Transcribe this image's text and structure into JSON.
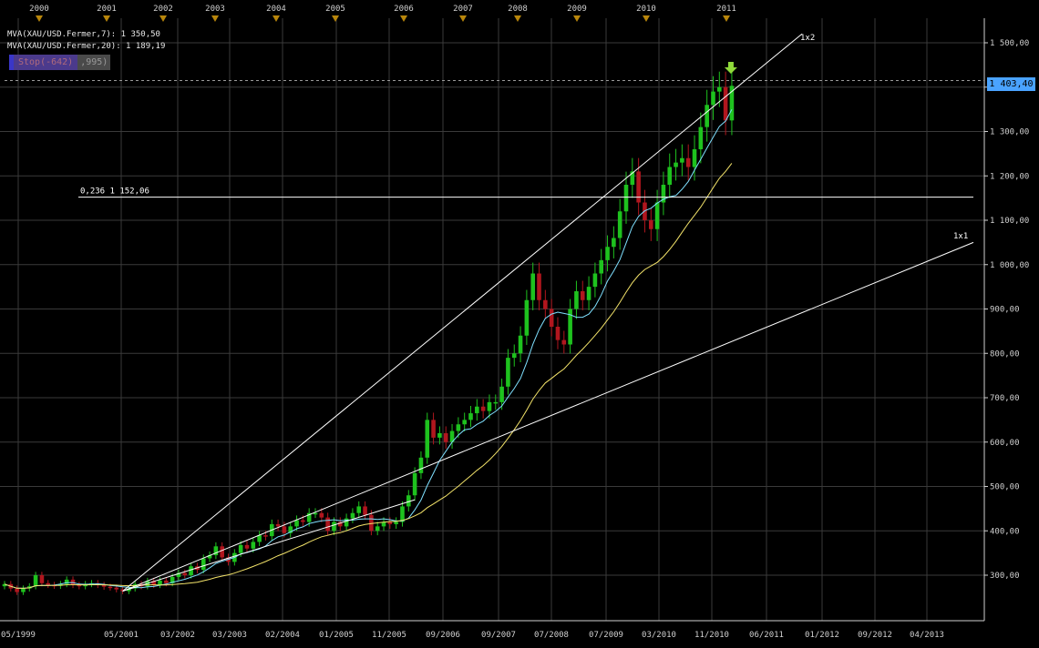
{
  "legend": {
    "ma7_label": "MVA(XAU/USD.Fermer,7): 1 350,50",
    "ma20_label": "MVA(XAU/USD.Fermer,20): 1 189,19"
  },
  "stop": {
    "label": "Stop(-642)",
    "value": ",995)"
  },
  "price_tag": "1 403,40",
  "colors": {
    "background": "#000000",
    "grid": "#3a3a3a",
    "up_candle": "#1ec21e",
    "down_candle": "#b0161e",
    "ma7": "#7fe0ff",
    "ma20": "#f3e36a",
    "trendlines": "#ffffff",
    "price_tag": "#4aa3ff",
    "marker": "#b8860b"
  },
  "icons": {
    "marker": "triangle-down-icon",
    "signal": "green-arrow-down-icon"
  },
  "chart_data": {
    "type": "candlestick",
    "title": "",
    "xlabel": "",
    "ylabel": "",
    "ylim": [
      200,
      1580
    ],
    "y_ticks": [
      "1 500,00",
      "1 400,00",
      "1 300,00",
      "1 200,00",
      "1 100,00",
      "1 000,00",
      "900,00",
      "800,00",
      "700,00",
      "600,00",
      "500,00",
      "400,00",
      "300,00"
    ],
    "y_tick_values": [
      1500,
      1400,
      1300,
      1200,
      1100,
      1000,
      900,
      800,
      700,
      600,
      500,
      400,
      300
    ],
    "x_ticks": [
      "05/1999",
      "05/2001",
      "03/2002",
      "03/2003",
      "02/2004",
      "01/2005",
      "11/2005",
      "09/2006",
      "09/2007",
      "07/2008",
      "07/2009",
      "03/2010",
      "11/2010",
      "06/2011",
      "01/2012",
      "09/2012",
      "04/2013"
    ],
    "top_year_labels": [
      "2000",
      "2001",
      "2002",
      "2003",
      "2004",
      "2005",
      "2006",
      "2007",
      "2008",
      "2009",
      "2010",
      "2011"
    ],
    "annotations": {
      "fib_label": "0,236 1 152,06",
      "fib_level": 1152.06,
      "fan_1x2": "1x2",
      "fan_1x1": "1x1",
      "dashed_level": 1415
    },
    "closes": [
      280,
      270,
      262,
      270,
      275,
      300,
      282,
      278,
      276,
      280,
      290,
      278,
      275,
      280,
      282,
      278,
      274,
      272,
      268,
      264,
      270,
      280,
      275,
      287,
      278,
      288,
      282,
      296,
      305,
      300,
      320,
      312,
      338,
      345,
      365,
      340,
      330,
      350,
      368,
      360,
      375,
      390,
      388,
      415,
      410,
      395,
      410,
      424,
      420,
      440,
      440,
      430,
      400,
      420,
      410,
      428,
      440,
      455,
      436,
      400,
      410,
      420,
      415,
      420,
      455,
      480,
      530,
      565,
      650,
      610,
      620,
      600,
      625,
      640,
      650,
      665,
      680,
      670,
      690,
      690,
      725,
      790,
      800,
      840,
      920,
      980,
      920,
      900,
      860,
      830,
      820,
      900,
      940,
      920,
      950,
      980,
      1010,
      1040,
      1060,
      1120,
      1180,
      1210,
      1140,
      1100,
      1080,
      1140,
      1180,
      1220,
      1230,
      1240,
      1220,
      1260,
      1310,
      1360,
      1390,
      1400,
      1325,
      1403
    ]
  }
}
